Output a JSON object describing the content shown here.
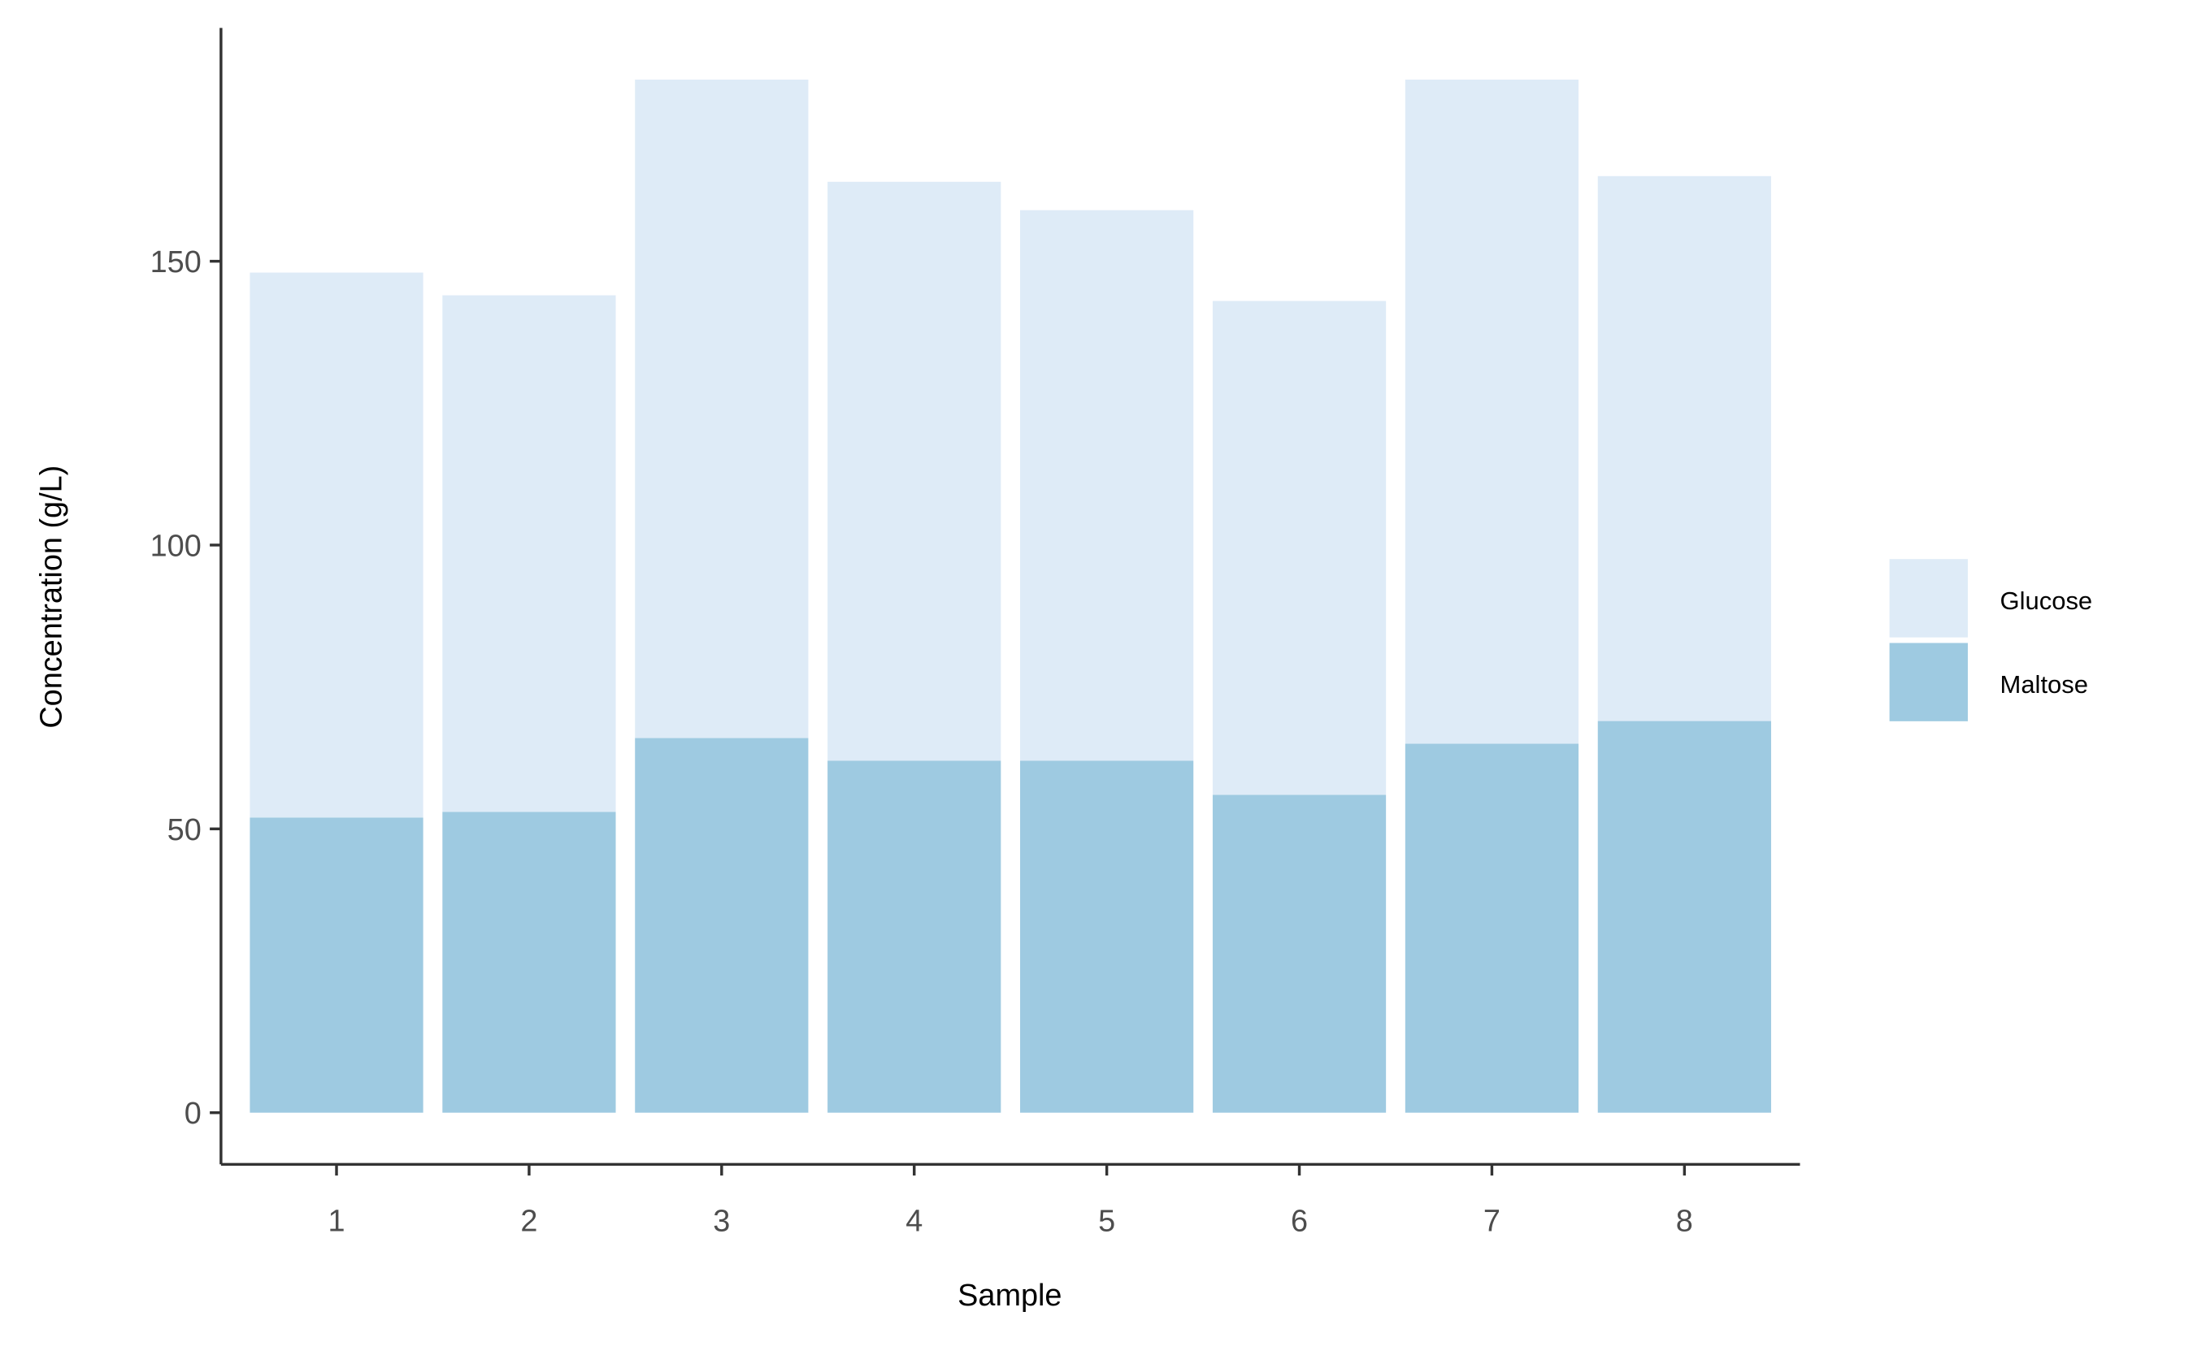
{
  "chart_data": {
    "type": "stacked-bar",
    "x_label": "Sample",
    "y_label": "Concentration (g/L)",
    "categories": [
      "1",
      "2",
      "3",
      "4",
      "5",
      "6",
      "7",
      "8"
    ],
    "series": [
      {
        "name": "Glucose",
        "color": "#deebf7",
        "values": [
          96,
          91,
          116,
          102,
          97,
          87,
          117,
          96
        ]
      },
      {
        "name": "Maltose",
        "color": "#9ecae1",
        "values": [
          52,
          53,
          66,
          62,
          62,
          56,
          65,
          69
        ]
      }
    ],
    "ylim": [
      -9.1,
      191.1
    ],
    "yticks": [
      0,
      50,
      100,
      150
    ],
    "grid": false,
    "legend": "right"
  }
}
